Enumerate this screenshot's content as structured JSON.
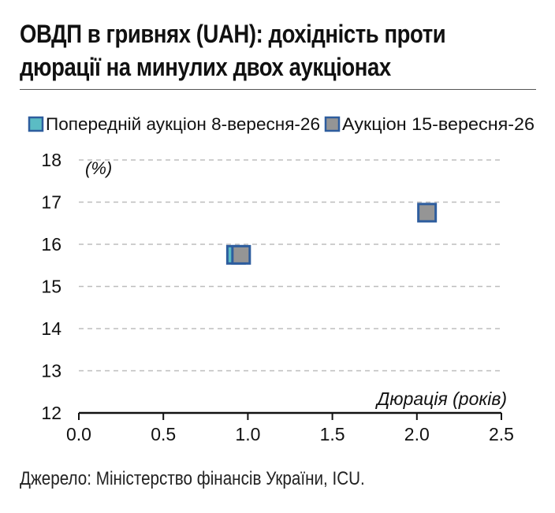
{
  "title_line1": "ОВДП в гривнях (UAH): дохідність проти",
  "title_line2": "дюрації на минулих двох аукціонах",
  "source": "Джерело: Міністерство фінансів України, ICU.",
  "colors": {
    "previous_fill": "#5bbcc4",
    "current_fill": "#959595",
    "marker_border": "#2e5d9e",
    "grid": "#bdbdbd",
    "axis": "#111111"
  },
  "chart_data": {
    "type": "scatter",
    "xlabel": "Дюрація (років)",
    "ylabel": "(%)",
    "xlim": [
      0,
      2.5
    ],
    "ylim": [
      12,
      18
    ],
    "x_ticks": [
      "0.0",
      "0.5",
      "1.0",
      "1.5",
      "2.0",
      "2.5"
    ],
    "y_ticks": [
      "12",
      "13",
      "14",
      "15",
      "16",
      "17",
      "18"
    ],
    "grid": "horizontal dashed",
    "legend_position": "top",
    "series": [
      {
        "name": "Попередній аукціон 8-вересня-26",
        "color": "#5bbcc4",
        "points": [
          {
            "x": 0.93,
            "y": 15.75
          }
        ]
      },
      {
        "name": "Аукціон 15-вересня-26",
        "color": "#959595",
        "points": [
          {
            "x": 0.96,
            "y": 15.75
          },
          {
            "x": 2.06,
            "y": 16.75
          }
        ]
      }
    ]
  }
}
